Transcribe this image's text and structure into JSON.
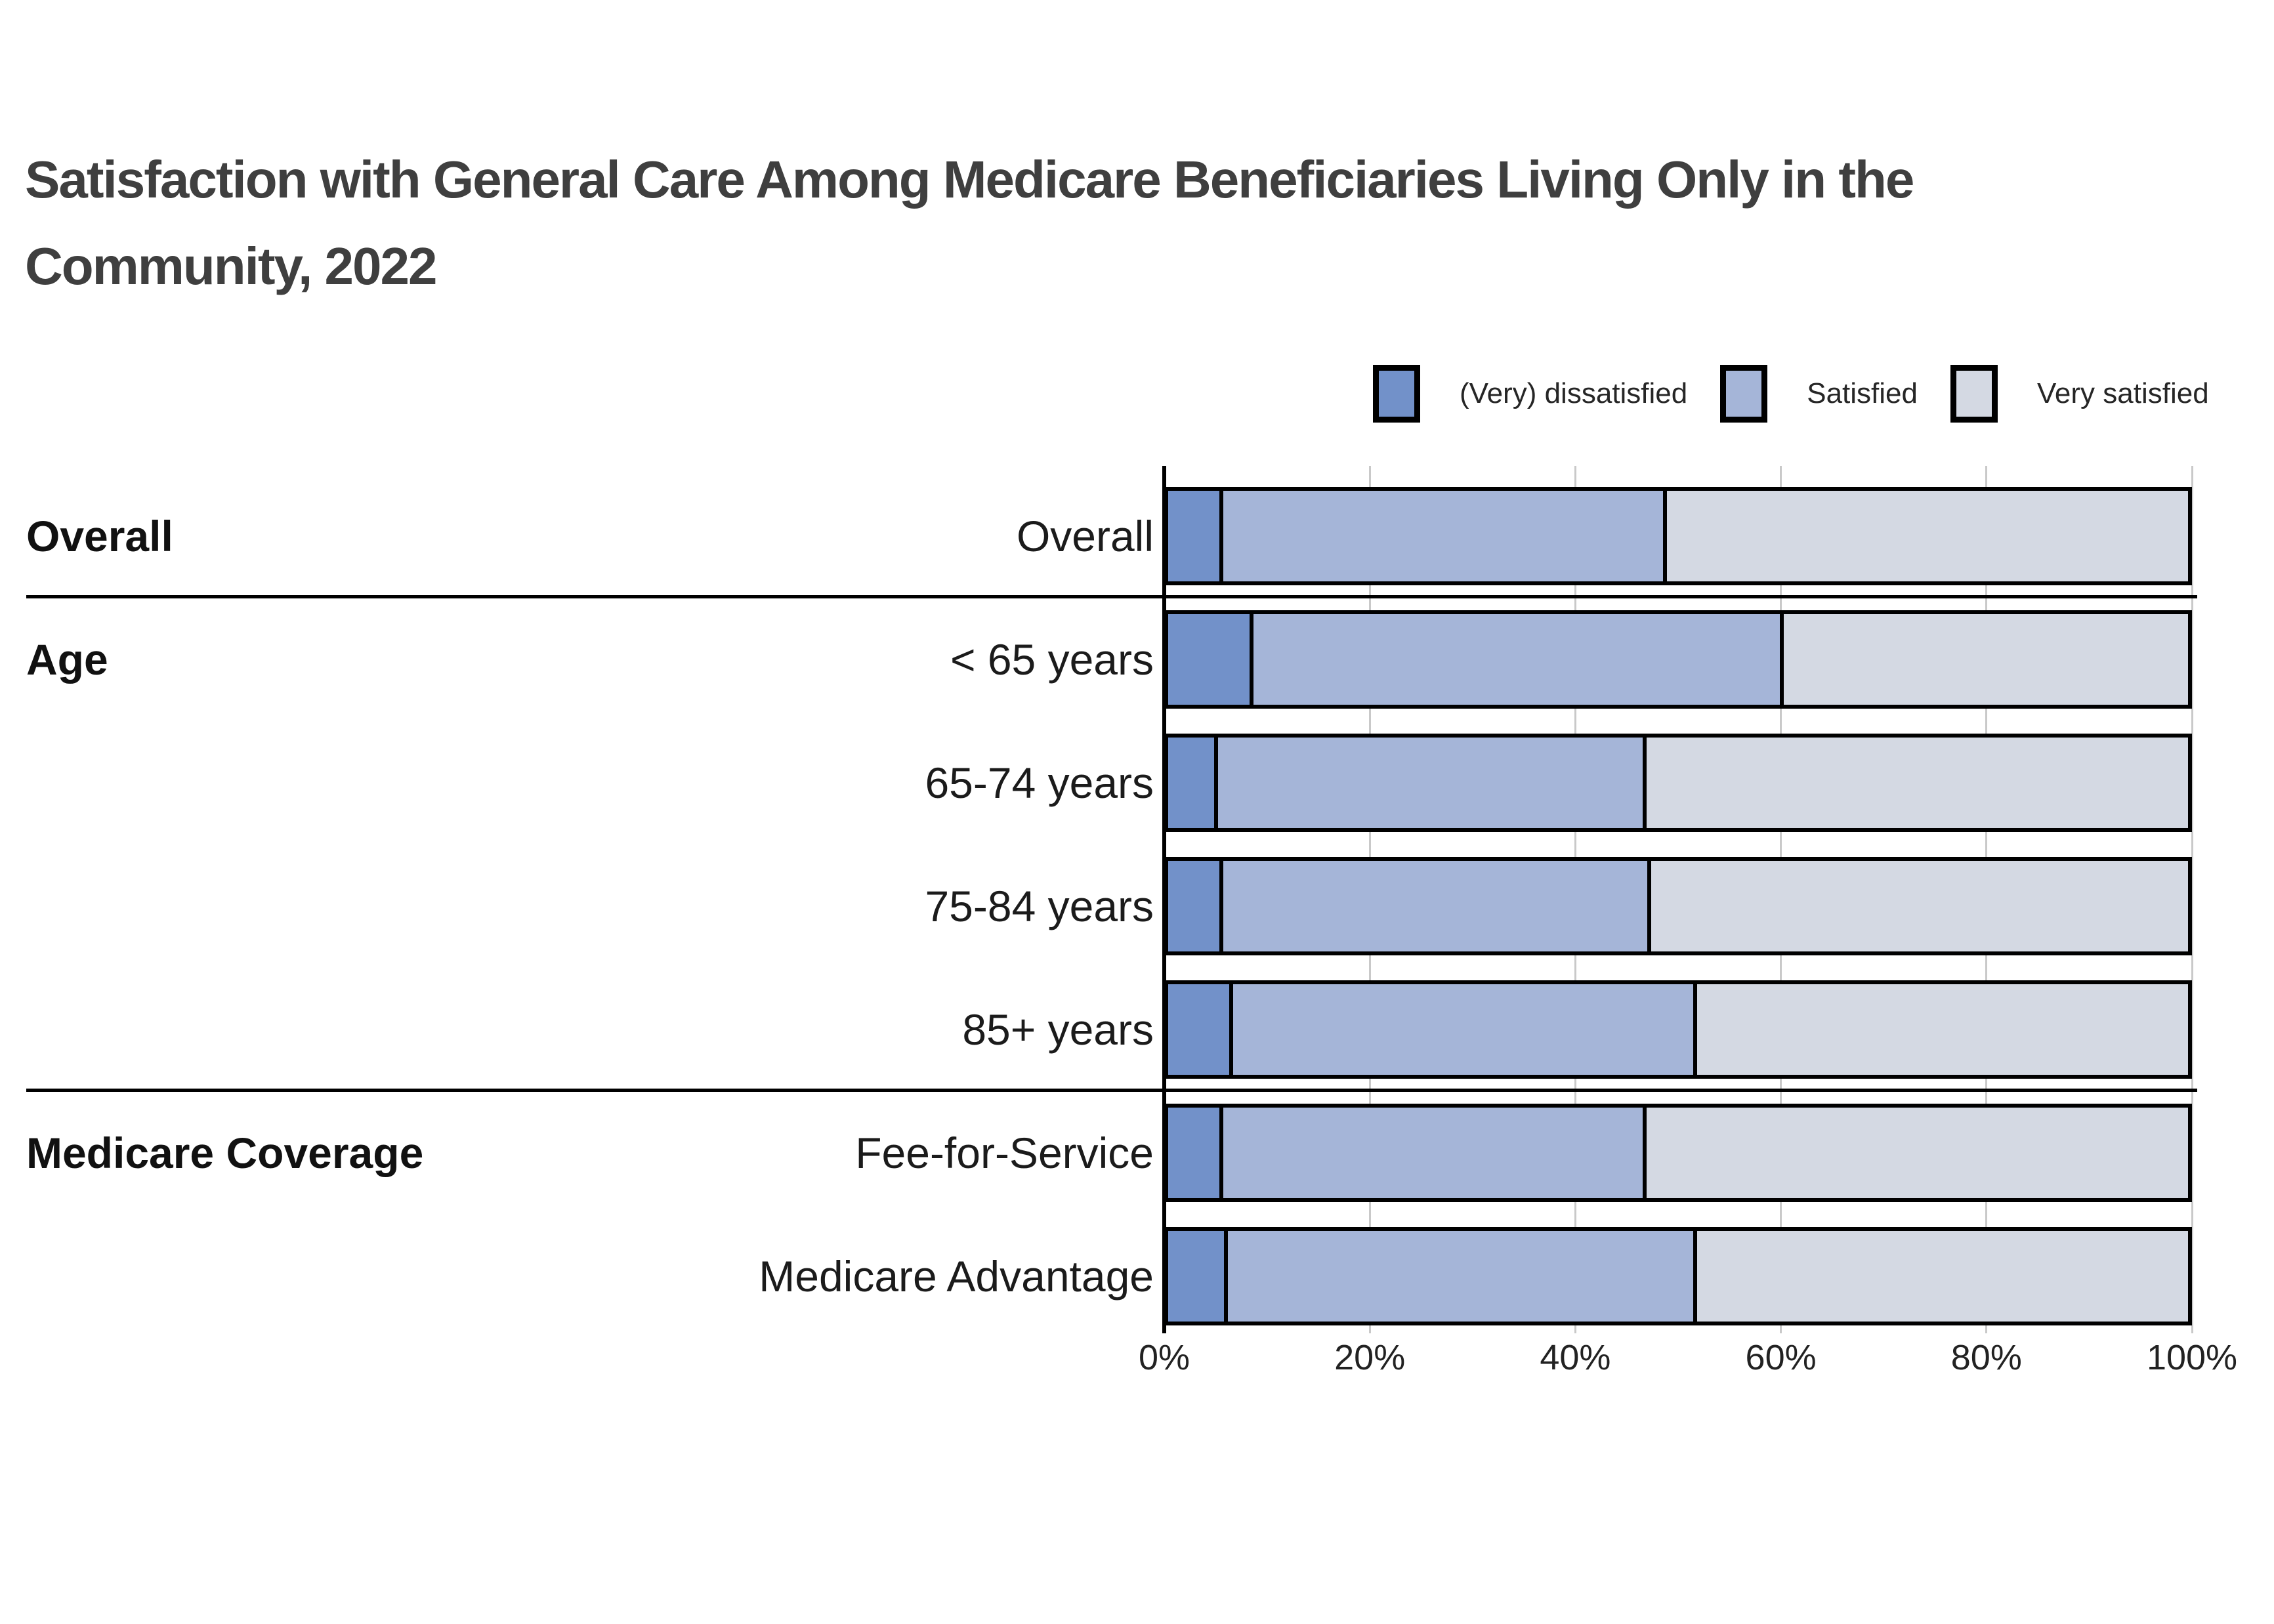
{
  "title": {
    "line1": "Satisfaction with General Care Among Medicare Beneficiaries Living Only in the",
    "line2": "Community, 2022",
    "full": "Satisfaction with General Care Among Medicare Beneficiaries Living Only in the Community, 2022"
  },
  "legend": {
    "items": [
      {
        "label": "(Very) dissatisfied",
        "color": "#7291c9"
      },
      {
        "label": "Satisfied",
        "color": "#a5b5d8"
      },
      {
        "label": "Very satisfied",
        "color": "#d4d9e3"
      }
    ]
  },
  "colors": {
    "series": [
      "#7291c9",
      "#a5b5d8",
      "#d4d9e3"
    ],
    "bar_border": "#000000",
    "gridline": "#c9c9c9",
    "axis": "#000000",
    "separator": "#000000",
    "title_text": "#3f3f3f",
    "label_text": "#1b1b1b",
    "background": "#ffffff"
  },
  "chart_data": {
    "type": "bar",
    "subtype": "horizontal_stacked",
    "title": "Satisfaction with General Care Among Medicare Beneficiaries Living Only in the Community, 2022",
    "unit": "percent",
    "stack_order": [
      "(Very) dissatisfied",
      "Satisfied",
      "Very satisfied"
    ],
    "legend_position": "top-right",
    "x_axis": {
      "ticks": [
        "0%",
        "20%",
        "40%",
        "60%",
        "80%",
        "100%"
      ],
      "tick_values": [
        0,
        20,
        40,
        60,
        80,
        100
      ],
      "range": [
        0,
        100
      ],
      "grid": true
    },
    "groups": [
      {
        "label": "Overall",
        "rows": [
          {
            "label": "Overall",
            "values": [
              5,
              43.5,
              51.5
            ]
          }
        ]
      },
      {
        "label": "Age",
        "rows": [
          {
            "label": "< 65 years",
            "values": [
              8,
              52,
              40
            ]
          },
          {
            "label": "65-74 years",
            "values": [
              4.5,
              42,
              53.5
            ]
          },
          {
            "label": "75-84 years",
            "values": [
              5,
              42,
              53
            ]
          },
          {
            "label": "85+ years",
            "values": [
              6,
              45.5,
              48.5
            ]
          }
        ]
      },
      {
        "label": "Medicare Coverage",
        "rows": [
          {
            "label": "Fee-for-Service",
            "values": [
              5,
              41.5,
              53.5
            ]
          },
          {
            "label": "Medicare Advantage",
            "values": [
              5.5,
              46,
              48.5
            ]
          }
        ]
      }
    ]
  }
}
